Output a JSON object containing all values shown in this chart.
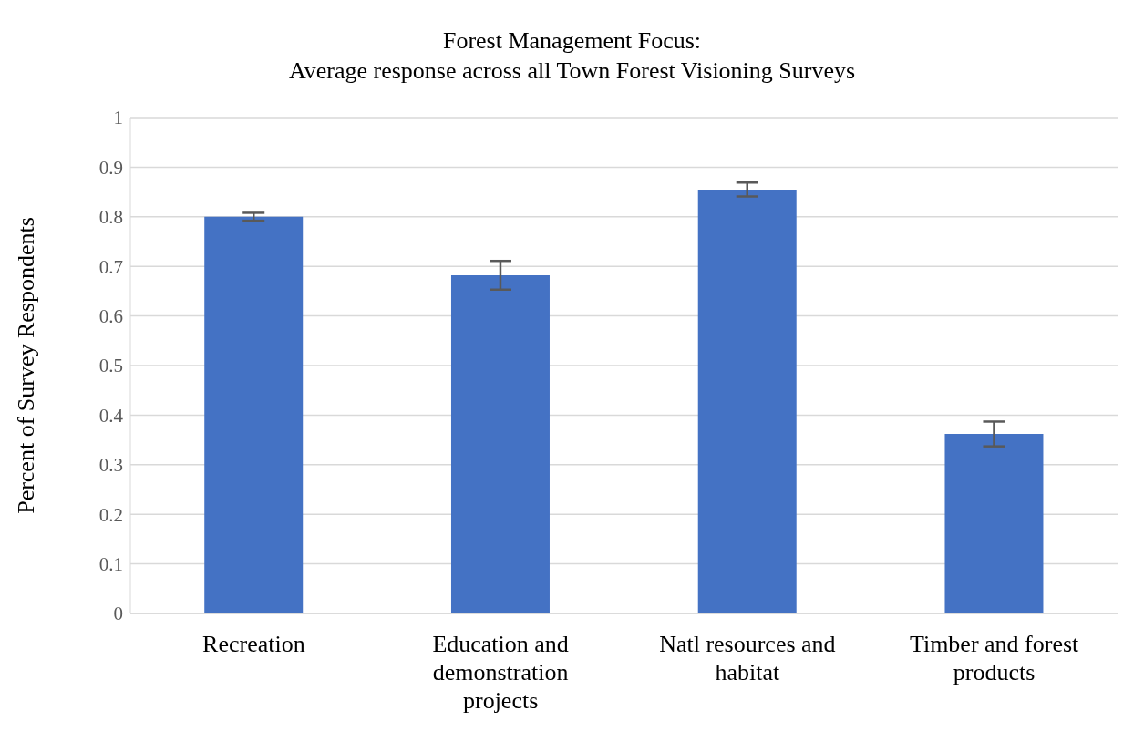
{
  "chart_data": {
    "type": "bar",
    "title": "Forest Management Focus:\nAverage response across all Town Forest Visioning Surveys",
    "ylabel": "Percent of Survey Respondents",
    "categories": [
      "Recreation",
      "Education and demonstration projects",
      "Natl resources and habitat",
      "Timber and forest products"
    ],
    "values": [
      0.8,
      0.682,
      0.855,
      0.362
    ],
    "errors": [
      0.008,
      0.029,
      0.014,
      0.025
    ],
    "color": "#4472c4",
    "ylim": [
      0,
      1
    ],
    "yticks": [
      0,
      0.1,
      0.2,
      0.3,
      0.4,
      0.5,
      0.6,
      0.7,
      0.8,
      0.9,
      1
    ],
    "grid": "y"
  }
}
